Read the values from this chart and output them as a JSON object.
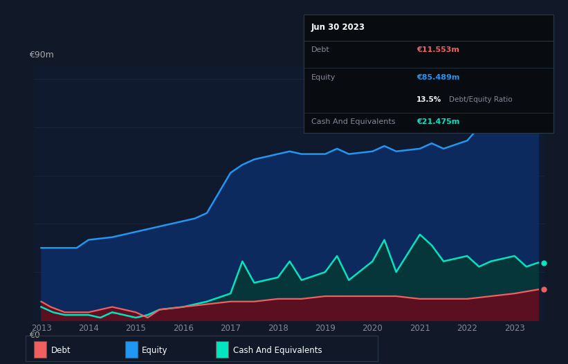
{
  "background_color": "#111827",
  "plot_bg_color": "#0f1a2e",
  "grid_color": "#1e2d40",
  "ylabel_top": "€90m",
  "ylabel_bottom": "€0",
  "x_ticks": [
    2013,
    2014,
    2015,
    2016,
    2017,
    2018,
    2019,
    2020,
    2021,
    2022,
    2023
  ],
  "equity_color": "#2196f3",
  "equity_fill": "#0d2a5e",
  "debt_color": "#f06060",
  "debt_fill": "#5a1020",
  "cash_color": "#00e5c0",
  "cash_fill": "#07363a",
  "info_box": {
    "title": "Jun 30 2023",
    "debt_label": "Debt",
    "debt_value": "€11.553m",
    "debt_color": "#f06060",
    "equity_label": "Equity",
    "equity_value": "€85.489m",
    "equity_color": "#2196f3",
    "ratio_value": "13.5%",
    "ratio_label": "Debt/Equity Ratio",
    "cash_label": "Cash And Equivalents",
    "cash_value": "€21.475m",
    "cash_color": "#00e5c0"
  },
  "equity_data": {
    "x": [
      2013.0,
      2013.2,
      2013.5,
      2013.75,
      2014.0,
      2014.5,
      2015.0,
      2015.5,
      2016.0,
      2016.25,
      2016.5,
      2017.0,
      2017.25,
      2017.5,
      2018.0,
      2018.25,
      2018.5,
      2019.0,
      2019.25,
      2019.5,
      2020.0,
      2020.25,
      2020.5,
      2021.0,
      2021.25,
      2021.5,
      2022.0,
      2022.25,
      2022.5,
      2023.0,
      2023.25,
      2023.5
    ],
    "y": [
      27,
      27,
      27,
      27,
      30,
      31,
      33,
      35,
      37,
      38,
      40,
      55,
      58,
      60,
      62,
      63,
      62,
      62,
      64,
      62,
      63,
      65,
      63,
      64,
      66,
      64,
      67,
      72,
      70,
      80,
      90,
      85
    ]
  },
  "debt_data": {
    "x": [
      2013.0,
      2013.2,
      2013.5,
      2014.0,
      2014.25,
      2014.5,
      2015.0,
      2015.25,
      2015.5,
      2016.0,
      2016.5,
      2017.0,
      2017.5,
      2018.0,
      2018.5,
      2019.0,
      2019.5,
      2020.0,
      2020.5,
      2021.0,
      2021.5,
      2022.0,
      2022.5,
      2023.0,
      2023.5
    ],
    "y": [
      7,
      5,
      3,
      3,
      4,
      5,
      3,
      1,
      4,
      5,
      6,
      7,
      7,
      8,
      8,
      9,
      9,
      9,
      9,
      8,
      8,
      8,
      9,
      10,
      11.5
    ]
  },
  "cash_data": {
    "x": [
      2013.0,
      2013.25,
      2013.5,
      2014.0,
      2014.25,
      2014.5,
      2015.0,
      2015.25,
      2015.5,
      2016.0,
      2016.25,
      2016.5,
      2017.0,
      2017.25,
      2017.5,
      2018.0,
      2018.25,
      2018.5,
      2019.0,
      2019.25,
      2019.5,
      2020.0,
      2020.25,
      2020.5,
      2021.0,
      2021.25,
      2021.5,
      2022.0,
      2022.25,
      2022.5,
      2023.0,
      2023.25,
      2023.5
    ],
    "y": [
      5,
      3,
      2,
      2,
      1,
      3,
      1,
      2,
      4,
      5,
      6,
      7,
      10,
      22,
      14,
      16,
      22,
      15,
      18,
      24,
      15,
      22,
      30,
      18,
      32,
      28,
      22,
      24,
      20,
      22,
      24,
      20,
      21.5
    ]
  },
  "legend_items": [
    {
      "label": "Debt",
      "color": "#f06060"
    },
    {
      "label": "Equity",
      "color": "#2196f3"
    },
    {
      "label": "Cash And Equivalents",
      "color": "#00e5c0"
    }
  ]
}
